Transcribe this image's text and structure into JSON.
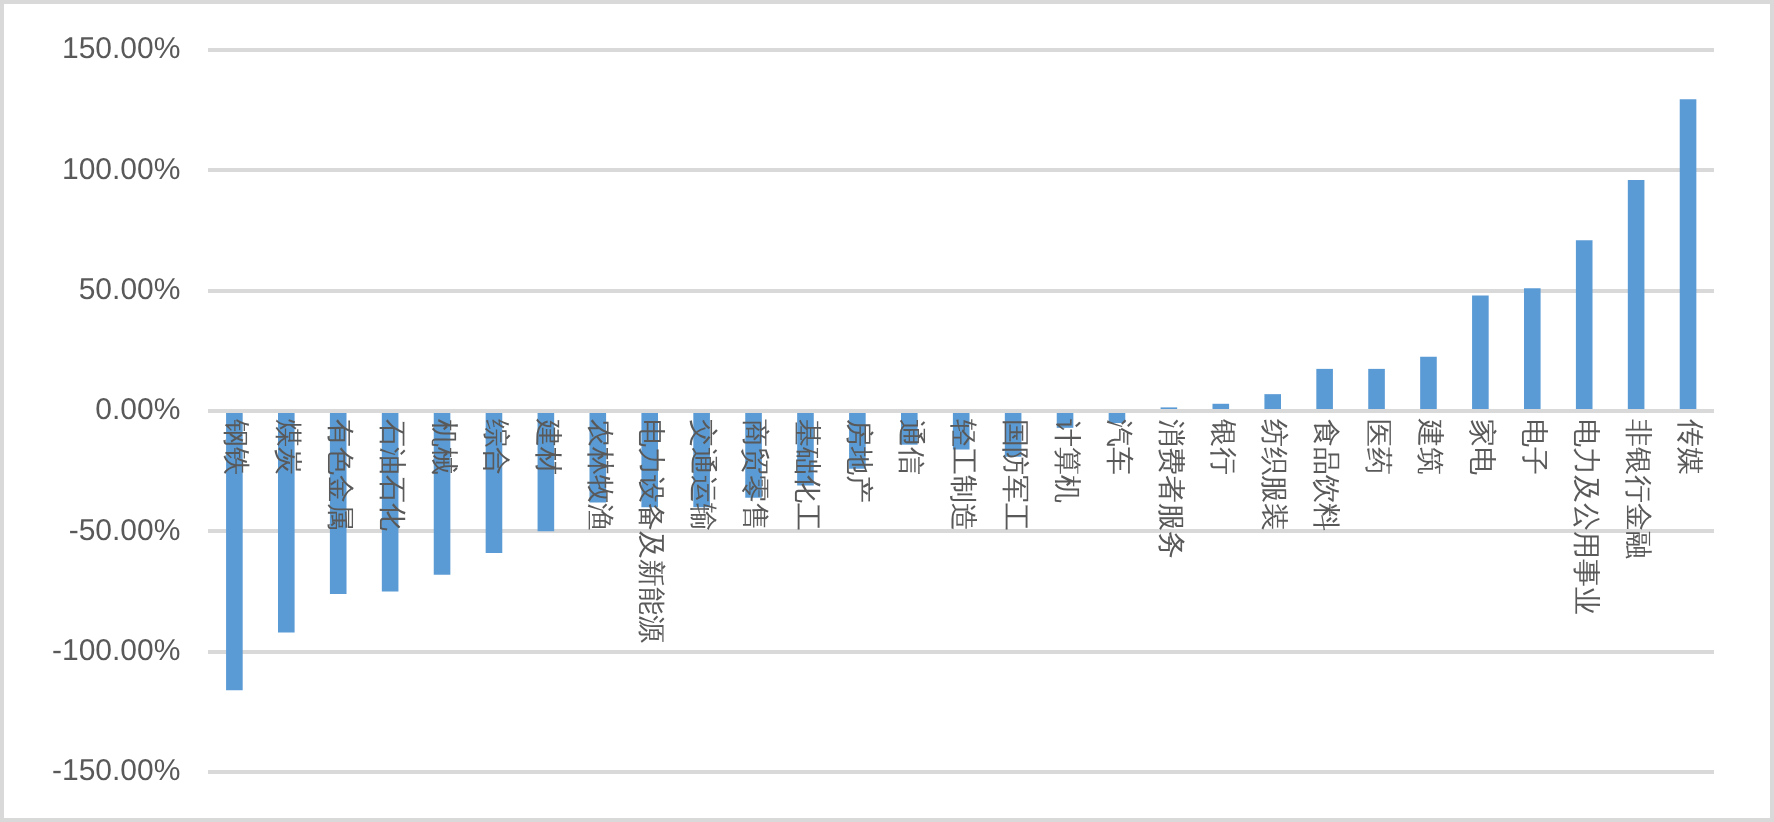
{
  "chart_data": {
    "type": "bar",
    "categories": [
      "钢铁",
      "煤炭",
      "有色金属",
      "石油石化",
      "机械",
      "综合",
      "建材",
      "农林牧渔",
      "电力设备及新能源",
      "交通运输",
      "商贸零售",
      "基础化工",
      "房地产",
      "通信",
      "轻工制造",
      "国防军工",
      "计算机",
      "汽车",
      "消费者服务",
      "银行",
      "纺织服装",
      "食品饮料",
      "医药",
      "建筑",
      "家电",
      "电子",
      "电力及公用事业",
      "非银行金融",
      "传媒"
    ],
    "values": [
      -116,
      -92,
      -76,
      -75,
      -68,
      -59,
      -50,
      -38,
      -40,
      -40,
      -36,
      -31,
      -24,
      -14,
      -16,
      -19,
      -7,
      -5,
      1.5,
      3,
      7,
      17.5,
      17.5,
      22.5,
      48,
      51,
      71,
      96,
      129.5
    ],
    "color": "#5b9bd5",
    "ylim": [
      -150,
      150
    ],
    "yticks": [
      {
        "value": -150,
        "label": "-150.00%"
      },
      {
        "value": -100,
        "label": "-100.00%"
      },
      {
        "value": -50,
        "label": "-50.00%"
      },
      {
        "value": 0,
        "label": "0.00%"
      },
      {
        "value": 50,
        "label": "50.00%"
      },
      {
        "value": 100,
        "label": "100.00%"
      },
      {
        "value": 150,
        "label": "150.00%"
      }
    ],
    "grid": "y",
    "legend": false
  }
}
